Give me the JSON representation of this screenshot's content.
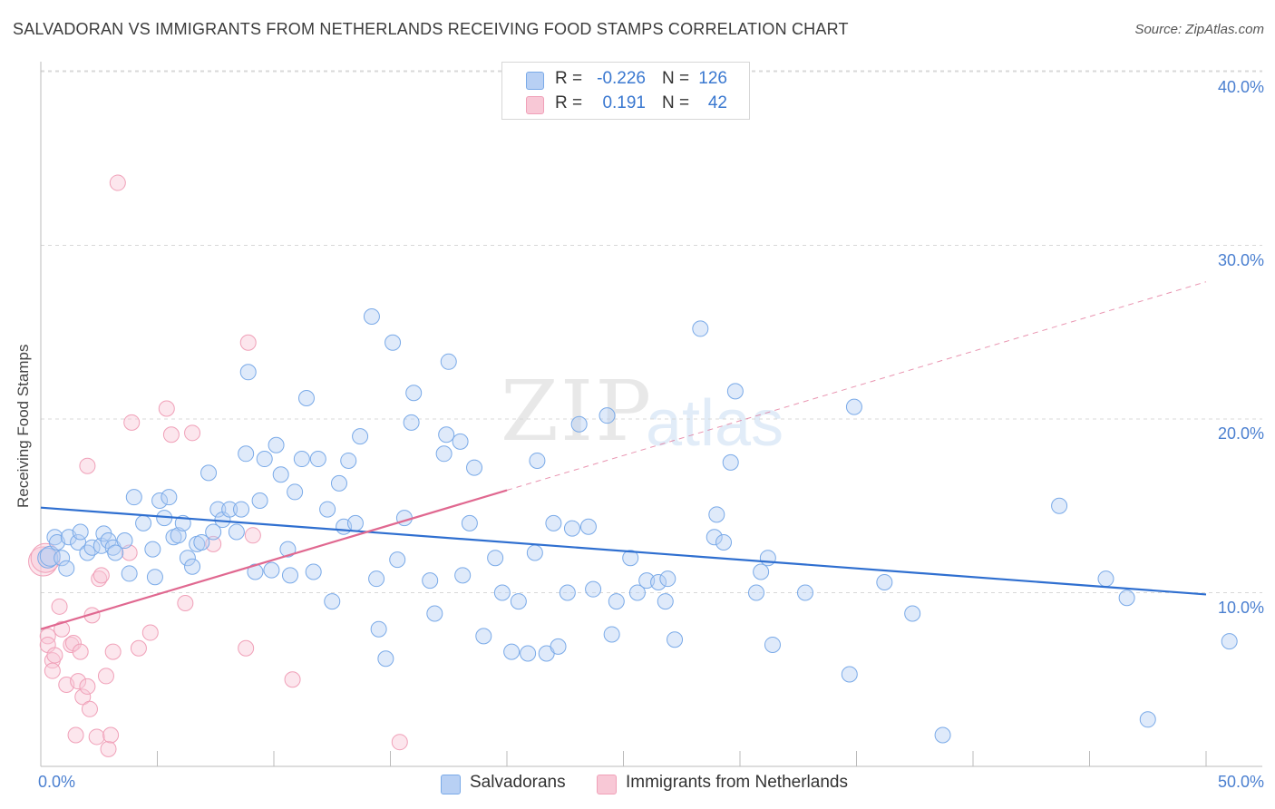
{
  "title": "SALVADORAN VS IMMIGRANTS FROM NETHERLANDS RECEIVING FOOD STAMPS CORRELATION CHART",
  "source": "Source: ZipAtlas.com",
  "watermark": {
    "zip": "ZIP",
    "atlas": "atlas"
  },
  "colors": {
    "blue": "#7aaae8",
    "blue_line": "#2f6fd0",
    "pink": "#f0a0b8",
    "pink_line": "#e06890",
    "grid": "#d8d8d8",
    "tick_text": "#4a7fd0"
  },
  "legend": {
    "rows": [
      {
        "r_label": "R =",
        "r_value": "-0.226",
        "n_label": "N =",
        "n_value": "126",
        "color": "#b8d0f4",
        "border": "#7aaae8"
      },
      {
        "r_label": "R =",
        "r_value": "0.191",
        "n_label": "N =",
        "n_value": "42",
        "color": "#f8c8d6",
        "border": "#f0a0b8"
      }
    ]
  },
  "bottom_legend": [
    {
      "label": "Salvadorans",
      "color": "#b8d0f4",
      "border": "#7aaae8"
    },
    {
      "label": "Immigrants from Netherlands",
      "color": "#f8c8d6",
      "border": "#f0a0b8"
    }
  ],
  "chart_data": {
    "type": "scatter",
    "title": "SALVADORAN VS IMMIGRANTS FROM NETHERLANDS RECEIVING FOOD STAMPS CORRELATION CHART",
    "ylabel": "Receiving Food Stamps",
    "xlabel": "",
    "xlim": [
      0,
      50
    ],
    "ylim": [
      0,
      40
    ],
    "x_tick_labels": [
      "0.0%",
      "50.0%"
    ],
    "y_ticks": [
      10,
      20,
      30,
      40
    ],
    "y_tick_labels": [
      "10.0%",
      "20.0%",
      "30.0%",
      "40.0%"
    ],
    "grid": "horizontal dashed",
    "legend_position": "top-center",
    "series": [
      {
        "name": "Salvadorans",
        "color": "#7aaae8",
        "trend": {
          "x": [
            0,
            50
          ],
          "y": [
            14.9,
            9.9
          ]
        },
        "points": [
          [
            0.3,
            12.0
          ],
          [
            0.4,
            12.1
          ],
          [
            0.6,
            13.2
          ],
          [
            0.7,
            12.9
          ],
          [
            0.9,
            12.0
          ],
          [
            1.1,
            11.4
          ],
          [
            1.2,
            13.2
          ],
          [
            1.6,
            12.9
          ],
          [
            1.7,
            13.5
          ],
          [
            2.0,
            12.3
          ],
          [
            2.2,
            12.6
          ],
          [
            2.6,
            12.7
          ],
          [
            2.7,
            13.4
          ],
          [
            2.9,
            13.0
          ],
          [
            3.1,
            12.6
          ],
          [
            3.2,
            12.3
          ],
          [
            3.6,
            13.0
          ],
          [
            3.8,
            11.1
          ],
          [
            4.0,
            15.5
          ],
          [
            4.4,
            14.0
          ],
          [
            4.8,
            12.5
          ],
          [
            4.9,
            10.9
          ],
          [
            5.1,
            15.3
          ],
          [
            5.3,
            14.3
          ],
          [
            5.5,
            15.5
          ],
          [
            5.7,
            13.2
          ],
          [
            5.9,
            13.3
          ],
          [
            6.1,
            14.0
          ],
          [
            6.3,
            12.0
          ],
          [
            6.5,
            11.5
          ],
          [
            6.7,
            12.8
          ],
          [
            6.9,
            12.9
          ],
          [
            7.2,
            16.9
          ],
          [
            7.4,
            13.5
          ],
          [
            7.6,
            14.8
          ],
          [
            7.8,
            14.2
          ],
          [
            8.1,
            14.8
          ],
          [
            8.4,
            13.5
          ],
          [
            8.6,
            14.8
          ],
          [
            8.8,
            18.0
          ],
          [
            8.9,
            22.7
          ],
          [
            9.2,
            11.2
          ],
          [
            9.4,
            15.3
          ],
          [
            9.6,
            17.7
          ],
          [
            9.9,
            11.3
          ],
          [
            10.1,
            18.5
          ],
          [
            10.3,
            16.8
          ],
          [
            10.6,
            12.5
          ],
          [
            10.7,
            11.0
          ],
          [
            10.9,
            15.8
          ],
          [
            11.2,
            17.7
          ],
          [
            11.4,
            21.2
          ],
          [
            11.7,
            11.2
          ],
          [
            11.9,
            17.7
          ],
          [
            12.3,
            14.8
          ],
          [
            12.5,
            9.5
          ],
          [
            12.8,
            16.3
          ],
          [
            13.0,
            13.8
          ],
          [
            13.2,
            17.6
          ],
          [
            13.5,
            14.0
          ],
          [
            13.7,
            19.0
          ],
          [
            14.2,
            25.9
          ],
          [
            14.4,
            10.8
          ],
          [
            14.5,
            7.9
          ],
          [
            14.8,
            6.2
          ],
          [
            15.1,
            24.4
          ],
          [
            15.3,
            11.9
          ],
          [
            15.6,
            14.3
          ],
          [
            15.9,
            19.8
          ],
          [
            16.0,
            21.5
          ],
          [
            16.7,
            10.7
          ],
          [
            16.9,
            8.8
          ],
          [
            17.3,
            18.0
          ],
          [
            17.4,
            19.1
          ],
          [
            17.5,
            23.3
          ],
          [
            18.0,
            18.7
          ],
          [
            18.1,
            11.0
          ],
          [
            18.4,
            14.0
          ],
          [
            18.6,
            17.2
          ],
          [
            19.0,
            7.5
          ],
          [
            19.5,
            12.0
          ],
          [
            19.8,
            10.0
          ],
          [
            20.2,
            6.6
          ],
          [
            20.5,
            9.5
          ],
          [
            20.9,
            6.5
          ],
          [
            21.2,
            12.3
          ],
          [
            21.3,
            17.6
          ],
          [
            21.7,
            6.5
          ],
          [
            22.0,
            14.0
          ],
          [
            22.2,
            6.9
          ],
          [
            22.6,
            10.0
          ],
          [
            22.8,
            13.7
          ],
          [
            23.1,
            19.7
          ],
          [
            23.5,
            13.8
          ],
          [
            23.7,
            10.2
          ],
          [
            24.3,
            20.2
          ],
          [
            24.5,
            7.6
          ],
          [
            24.7,
            9.5
          ],
          [
            25.3,
            12.0
          ],
          [
            25.6,
            10.0
          ],
          [
            26.0,
            10.7
          ],
          [
            26.5,
            10.6
          ],
          [
            26.8,
            9.5
          ],
          [
            26.9,
            10.8
          ],
          [
            27.2,
            7.3
          ],
          [
            28.3,
            25.2
          ],
          [
            28.9,
            13.2
          ],
          [
            29.0,
            14.5
          ],
          [
            29.3,
            12.9
          ],
          [
            29.6,
            17.5
          ],
          [
            29.8,
            21.6
          ],
          [
            30.7,
            10.0
          ],
          [
            30.9,
            11.2
          ],
          [
            31.2,
            12.0
          ],
          [
            31.4,
            7.0
          ],
          [
            32.8,
            10.0
          ],
          [
            34.7,
            5.3
          ],
          [
            34.9,
            20.7
          ],
          [
            36.2,
            10.6
          ],
          [
            37.4,
            8.8
          ],
          [
            38.7,
            1.8
          ],
          [
            43.7,
            15.0
          ],
          [
            45.7,
            10.8
          ],
          [
            46.6,
            9.7
          ],
          [
            47.5,
            2.7
          ],
          [
            51.0,
            7.2
          ]
        ]
      },
      {
        "name": "Immigrants from Netherlands",
        "color": "#f0a0b8",
        "trend": {
          "x": [
            0,
            20
          ],
          "y": [
            7.9,
            15.9
          ]
        },
        "trend_dashed": {
          "x": [
            20,
            50
          ],
          "y": [
            15.9,
            27.9
          ]
        },
        "points": [
          [
            0.1,
            11.8
          ],
          [
            0.3,
            7.5
          ],
          [
            0.3,
            7.0
          ],
          [
            0.5,
            6.1
          ],
          [
            0.5,
            5.5
          ],
          [
            0.6,
            6.4
          ],
          [
            0.8,
            9.2
          ],
          [
            0.9,
            7.9
          ],
          [
            1.1,
            4.7
          ],
          [
            1.3,
            7.0
          ],
          [
            1.4,
            7.1
          ],
          [
            1.5,
            1.8
          ],
          [
            1.6,
            4.9
          ],
          [
            1.7,
            6.6
          ],
          [
            1.8,
            4.0
          ],
          [
            2.0,
            4.6
          ],
          [
            2.0,
            17.3
          ],
          [
            2.1,
            3.3
          ],
          [
            2.2,
            8.7
          ],
          [
            2.4,
            1.7
          ],
          [
            2.5,
            10.8
          ],
          [
            2.6,
            11.0
          ],
          [
            2.8,
            5.2
          ],
          [
            2.9,
            1.0
          ],
          [
            3.0,
            1.8
          ],
          [
            3.1,
            6.6
          ],
          [
            3.3,
            33.6
          ],
          [
            3.8,
            12.3
          ],
          [
            3.9,
            19.8
          ],
          [
            4.2,
            6.8
          ],
          [
            4.7,
            7.7
          ],
          [
            5.4,
            20.6
          ],
          [
            5.6,
            19.1
          ],
          [
            6.2,
            9.4
          ],
          [
            6.5,
            19.2
          ],
          [
            7.4,
            12.8
          ],
          [
            8.8,
            6.8
          ],
          [
            8.9,
            24.4
          ],
          [
            9.1,
            13.3
          ],
          [
            10.8,
            5.0
          ],
          [
            15.4,
            1.4
          ],
          [
            0.2,
            12.0
          ]
        ]
      }
    ]
  }
}
